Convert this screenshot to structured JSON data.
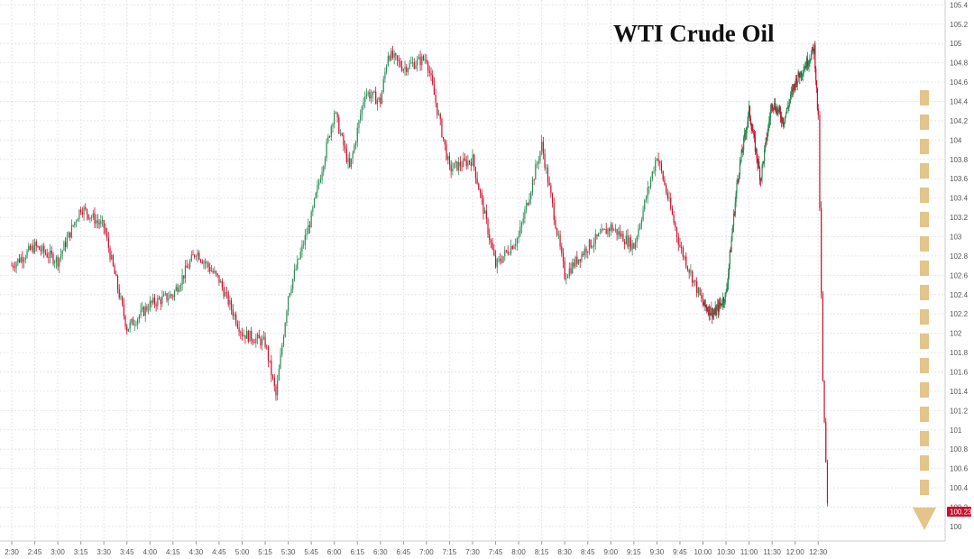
{
  "chart_data": {
    "type": "candlestick",
    "title": "WTI Crude Oil",
    "xlabel": "",
    "ylabel": "",
    "ylim": [
      99.85,
      105.45
    ],
    "grid": true,
    "legend": "none",
    "colors": {
      "up": "#2e8b57",
      "down": "#c8102e",
      "last_label_bg": "#c8102e",
      "arrow": "#e3c48a",
      "grid": "#e6e6e6"
    },
    "x_ticks": [
      "2:30",
      "2:45",
      "3:00",
      "3:15",
      "3:30",
      "3:45",
      "4:00",
      "4:15",
      "4:30",
      "4:45",
      "5:00",
      "5:15",
      "5:30",
      "5:45",
      "6:00",
      "6:15",
      "6:30",
      "6:45",
      "7:00",
      "7:15",
      "7:30",
      "7:45",
      "8:00",
      "8:15",
      "8:30",
      "8:45",
      "9:00",
      "9:15",
      "9:30",
      "9:45",
      "10:00",
      "10:30",
      "11:00",
      "11:30",
      "12:00",
      "12:30"
    ],
    "y_ticks": [
      "100",
      "100.2",
      "100.4",
      "100.6",
      "100.8",
      "101",
      "101.2",
      "101.4",
      "101.6",
      "101.8",
      "102",
      "102.2",
      "102.4",
      "102.6",
      "102.8",
      "103",
      "103.2",
      "103.4",
      "103.6",
      "103.8",
      "104",
      "104.2",
      "104.4",
      "104.6",
      "104.8",
      "105",
      "105.2",
      "105.4"
    ],
    "path_key_values": [
      {
        "x": "2:30",
        "y": 102.7
      },
      {
        "x": "2:45",
        "y": 102.9
      },
      {
        "x": "3:00",
        "y": 102.75
      },
      {
        "x": "3:15",
        "y": 103.3
      },
      {
        "x": "3:30",
        "y": 103.1
      },
      {
        "x": "3:45",
        "y": 102.05
      },
      {
        "x": "4:00",
        "y": 102.3
      },
      {
        "x": "4:15",
        "y": 102.4
      },
      {
        "x": "4:30",
        "y": 102.85
      },
      {
        "x": "4:45",
        "y": 102.55
      },
      {
        "x": "5:00",
        "y": 102.0
      },
      {
        "x": "5:15",
        "y": 101.9
      },
      {
        "x": "5:22",
        "y": 101.35
      },
      {
        "x": "5:30",
        "y": 102.4
      },
      {
        "x": "5:45",
        "y": 103.2
      },
      {
        "x": "6:00",
        "y": 104.3
      },
      {
        "x": "6:10",
        "y": 103.7
      },
      {
        "x": "6:20",
        "y": 104.5
      },
      {
        "x": "6:30",
        "y": 104.4
      },
      {
        "x": "6:35",
        "y": 104.9
      },
      {
        "x": "6:45",
        "y": 104.75
      },
      {
        "x": "7:00",
        "y": 104.85
      },
      {
        "x": "7:15",
        "y": 103.7
      },
      {
        "x": "7:30",
        "y": 103.8
      },
      {
        "x": "7:45",
        "y": 102.7
      },
      {
        "x": "8:00",
        "y": 103.0
      },
      {
        "x": "8:15",
        "y": 103.95
      },
      {
        "x": "8:30",
        "y": 102.6
      },
      {
        "x": "8:45",
        "y": 102.9
      },
      {
        "x": "9:00",
        "y": 103.1
      },
      {
        "x": "9:15",
        "y": 102.9
      },
      {
        "x": "9:30",
        "y": 103.85
      },
      {
        "x": "9:45",
        "y": 102.9
      },
      {
        "x": "10:00",
        "y": 102.3
      },
      {
        "x": "10:15",
        "y": 102.2
      },
      {
        "x": "10:30",
        "y": 102.4
      },
      {
        "x": "10:45",
        "y": 103.6
      },
      {
        "x": "11:00",
        "y": 104.3
      },
      {
        "x": "11:15",
        "y": 103.6
      },
      {
        "x": "11:30",
        "y": 104.4
      },
      {
        "x": "11:45",
        "y": 104.2
      },
      {
        "x": "12:00",
        "y": 104.6
      },
      {
        "x": "12:15",
        "y": 104.8
      },
      {
        "x": "12:25",
        "y": 104.95
      },
      {
        "x": "12:30",
        "y": 104.2
      },
      {
        "x": "12:33",
        "y": 101.5
      },
      {
        "x": "12:36",
        "y": 100.23
      }
    ],
    "last_price": "100.23"
  }
}
